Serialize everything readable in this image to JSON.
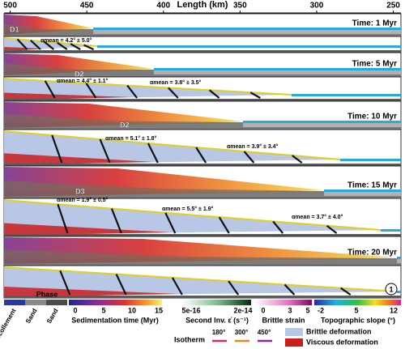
{
  "axis": {
    "label": "Length (km)",
    "ticks": [
      500,
      450,
      400,
      350,
      300,
      250
    ],
    "xlim": [
      504,
      245
    ]
  },
  "panels": [
    {
      "time": "Time: 1 Myr",
      "domains": [
        "D1"
      ],
      "annotations": [
        "αmean = 4.2° ± 5.0°"
      ]
    },
    {
      "time": "Time: 5 Myr",
      "domains": [
        "D2"
      ],
      "annotations": [
        "αmean = 4.4° ± 1.1°",
        "αmean = 3.8° ± 3.5°"
      ]
    },
    {
      "time": "Time: 10 Myr",
      "domains": [
        "D2"
      ],
      "annotations": [
        "αmean = 5.1° ± 1.8°",
        "αmean = 3.9° ± 3.4°"
      ]
    },
    {
      "time": "Time: 15 Myr",
      "domains": [
        "D3"
      ],
      "annotations": [
        "αmean = 1.9° ± 0.5°",
        "αmean = 5.5° ± 1.9°",
        "αmean = 3.7° ± 4.0°"
      ]
    },
    {
      "time": "Time: 20 Myr",
      "domains": [],
      "annotations": []
    }
  ],
  "legend": {
    "phase": {
      "title": "Phase",
      "items": [
        "Décollement",
        "Sand",
        "Sand"
      ]
    },
    "sedimentation": {
      "title": "Sedimentation time (Myr)",
      "ticks": [
        0,
        5,
        10,
        15
      ]
    },
    "strain_rate": {
      "title": "Second Inv. ε̇ (s⁻¹)",
      "ticks": [
        "5e-16",
        "2e-14"
      ]
    },
    "brittle_strain": {
      "title": "Brittle strain",
      "ticks": [
        0,
        3,
        5
      ]
    },
    "slope": {
      "title": "Topographic slope (°)",
      "ticks": [
        -2,
        5,
        12
      ]
    },
    "isotherm": {
      "title": "Isotherm",
      "items": [
        "180°",
        "300°",
        "450°"
      ]
    },
    "deformation": [
      "Brittle deformation",
      "Viscous deformation"
    ]
  },
  "badge": "1"
}
